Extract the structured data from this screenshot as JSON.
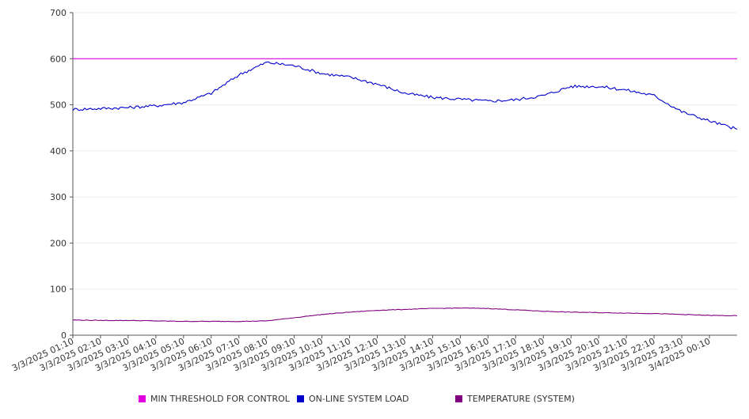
{
  "chart_data": {
    "type": "line",
    "title": "",
    "xlabel": "",
    "ylabel": "",
    "ylim": [
      0,
      700
    ],
    "yticks": [
      0,
      100,
      200,
      300,
      400,
      500,
      600,
      700
    ],
    "grid": true,
    "legend_position": "bottom",
    "x_tick_labels": [
      "3/3/2025 01:10",
      "3/3/2025 02:10",
      "3/3/2025 03:10",
      "3/3/2025 04:10",
      "3/3/2025 05:10",
      "3/3/2025 06:10",
      "3/3/2025 07:10",
      "3/3/2025 08:10",
      "3/3/2025 09:10",
      "3/3/2025 10:10",
      "3/3/2025 11:10",
      "3/3/2025 12:10",
      "3/3/2025 13:10",
      "3/3/2025 14:10",
      "3/3/2025 15:10",
      "3/3/2025 16:10",
      "3/3/2025 17:10",
      "3/3/2025 18:10",
      "3/3/2025 19:10",
      "3/3/2025 20:10",
      "3/3/2025 21:10",
      "3/3/2025 22:10",
      "3/3/2025 23:10",
      "3/4/2025 00:10"
    ],
    "x": [
      "3/3/2025 01:10",
      "3/3/2025 02:10",
      "3/3/2025 03:10",
      "3/3/2025 04:10",
      "3/3/2025 05:10",
      "3/3/2025 06:10",
      "3/3/2025 07:10",
      "3/3/2025 08:10",
      "3/3/2025 09:10",
      "3/3/2025 10:10",
      "3/3/2025 11:10",
      "3/3/2025 12:10",
      "3/3/2025 13:10",
      "3/3/2025 14:10",
      "3/3/2025 15:10",
      "3/3/2025 16:10",
      "3/3/2025 17:10",
      "3/3/2025 18:10",
      "3/3/2025 19:10",
      "3/3/2025 20:10",
      "3/3/2025 21:10",
      "3/3/2025 22:10",
      "3/3/2025 23:10",
      "3/4/2025 00:10",
      "3/4/2025 01:05"
    ],
    "series": [
      {
        "name": "MIN THRESHOLD FOR CONTROL",
        "color": "#e000e0",
        "values": [
          600,
          600,
          600,
          600,
          600,
          600,
          600,
          600,
          600,
          600,
          600,
          600,
          600,
          600,
          600,
          600,
          600,
          600,
          600,
          600,
          600,
          600,
          600,
          600,
          600
        ]
      },
      {
        "name": "ON-LINE SYSTEM LOAD",
        "color": "#0000cc",
        "values": [
          490,
          492,
          494,
          498,
          505,
          525,
          565,
          592,
          585,
          568,
          560,
          545,
          525,
          516,
          512,
          508,
          511,
          520,
          540,
          540,
          532,
          520,
          485,
          465,
          447
        ]
      },
      {
        "name": "TEMPERATURE (SYSTEM)",
        "color": "#800080",
        "values": [
          33,
          32,
          32,
          31,
          30,
          30,
          30,
          31,
          38,
          45,
          50,
          54,
          56,
          58,
          59,
          58,
          55,
          52,
          50,
          49,
          48,
          47,
          45,
          43,
          42
        ]
      }
    ]
  }
}
